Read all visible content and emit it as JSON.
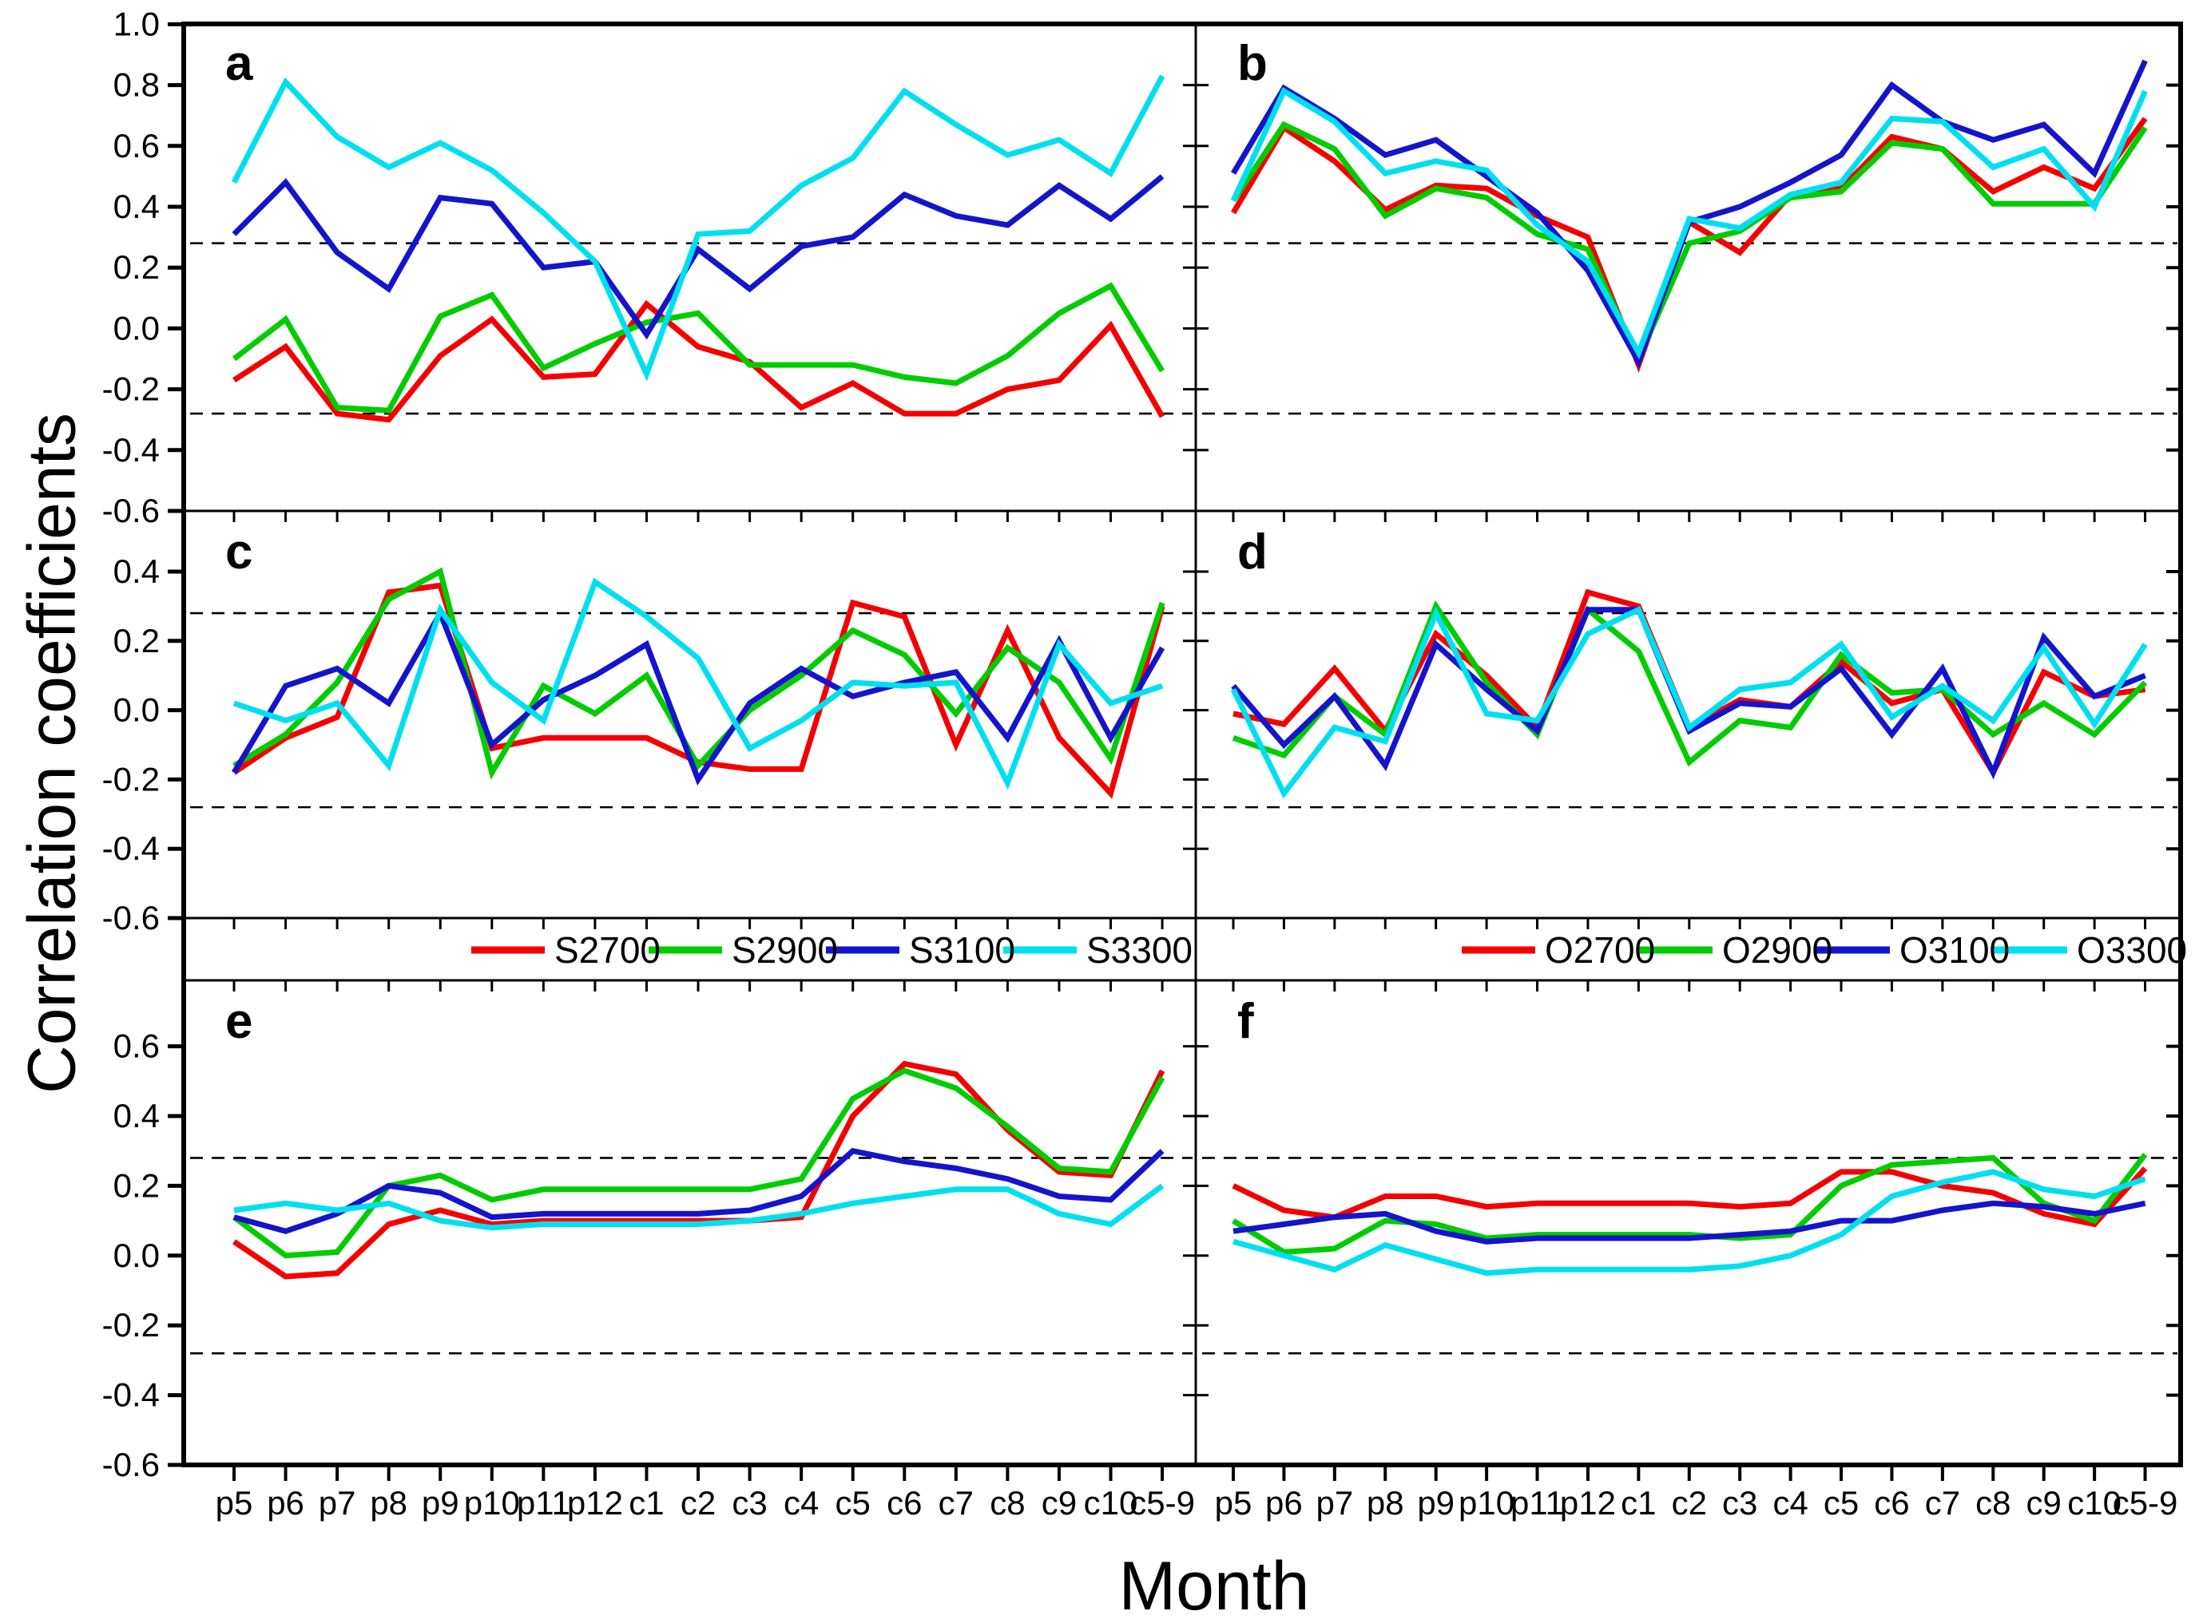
{
  "figure": {
    "y_axis_title": "Correlation coefficients",
    "x_axis_title": "Month",
    "significance_threshold": 0.28,
    "colors": {
      "red": "#F50000",
      "green": "#00CC00",
      "blue": "#1414CD",
      "cyan": "#00DFF0",
      "axis": "#000000"
    },
    "categories": [
      "p5",
      "p6",
      "p7",
      "p8",
      "p9",
      "p10",
      "p11",
      "p12",
      "c1",
      "c2",
      "c3",
      "c4",
      "c5",
      "c6",
      "c7",
      "c8",
      "c9",
      "c10",
      "c5-9"
    ],
    "legends": [
      {
        "panel_row": "middle",
        "side": "left",
        "items": [
          {
            "label": "S2700",
            "color_key": "red"
          },
          {
            "label": "S2900",
            "color_key": "green"
          },
          {
            "label": "S3100",
            "color_key": "blue"
          },
          {
            "label": "S3300",
            "color_key": "cyan"
          }
        ]
      },
      {
        "panel_row": "middle",
        "side": "right",
        "items": [
          {
            "label": "O2700",
            "color_key": "red"
          },
          {
            "label": "O2900",
            "color_key": "green"
          },
          {
            "label": "O3100",
            "color_key": "blue"
          },
          {
            "label": "O3300",
            "color_key": "cyan"
          }
        ]
      }
    ]
  },
  "chart_data": [
    {
      "type": "line",
      "panel": "a",
      "row": 0,
      "col": 0,
      "ylim": [
        -0.6,
        1.0
      ],
      "yticks": [
        1.0,
        0.8,
        0.6,
        0.4,
        0.2,
        0.0,
        -0.2,
        -0.4,
        -0.6
      ],
      "threshold_lines": [
        0.28,
        -0.28
      ],
      "series": [
        {
          "name": "S2700",
          "color_key": "red",
          "values": [
            -0.17,
            -0.06,
            -0.28,
            -0.3,
            -0.09,
            0.03,
            -0.16,
            -0.15,
            0.08,
            -0.06,
            -0.11,
            -0.26,
            -0.18,
            -0.28,
            -0.28,
            -0.2,
            -0.17,
            0.01,
            -0.29
          ]
        },
        {
          "name": "S2900",
          "color_key": "green",
          "values": [
            -0.1,
            0.03,
            -0.26,
            -0.27,
            0.04,
            0.11,
            -0.13,
            -0.05,
            0.02,
            0.05,
            -0.12,
            -0.12,
            -0.12,
            -0.16,
            -0.18,
            -0.09,
            0.05,
            0.14,
            -0.14
          ]
        },
        {
          "name": "S3100",
          "color_key": "blue",
          "values": [
            0.31,
            0.48,
            0.25,
            0.13,
            0.43,
            0.41,
            0.2,
            0.22,
            -0.02,
            0.26,
            0.13,
            0.27,
            0.3,
            0.44,
            0.37,
            0.34,
            0.47,
            0.36,
            0.5
          ]
        },
        {
          "name": "S3300",
          "color_key": "cyan",
          "values": [
            0.48,
            0.81,
            0.63,
            0.53,
            0.61,
            0.52,
            0.38,
            0.22,
            -0.15,
            0.31,
            0.32,
            0.47,
            0.56,
            0.78,
            0.67,
            0.57,
            0.62,
            0.51,
            0.83
          ]
        }
      ]
    },
    {
      "type": "line",
      "panel": "b",
      "row": 0,
      "col": 1,
      "ylim": [
        -0.6,
        1.0
      ],
      "yticks": [
        0.8,
        0.6,
        0.4,
        0.2,
        0.0,
        -0.2,
        -0.4
      ],
      "threshold_lines": [
        0.28,
        -0.28
      ],
      "series": [
        {
          "name": "O2700",
          "color_key": "red",
          "values": [
            0.38,
            0.66,
            0.55,
            0.39,
            0.47,
            0.46,
            0.37,
            0.3,
            -0.12,
            0.35,
            0.25,
            0.44,
            0.46,
            0.63,
            0.59,
            0.45,
            0.53,
            0.46,
            0.69
          ]
        },
        {
          "name": "O2900",
          "color_key": "green",
          "values": [
            0.42,
            0.67,
            0.59,
            0.37,
            0.46,
            0.43,
            0.31,
            0.26,
            -0.1,
            0.28,
            0.32,
            0.43,
            0.45,
            0.61,
            0.59,
            0.41,
            0.41,
            0.41,
            0.66
          ]
        },
        {
          "name": "O3100",
          "color_key": "blue",
          "values": [
            0.51,
            0.79,
            0.69,
            0.57,
            0.62,
            0.5,
            0.38,
            0.19,
            -0.11,
            0.35,
            0.4,
            0.48,
            0.57,
            0.8,
            0.68,
            0.62,
            0.67,
            0.51,
            0.88
          ]
        },
        {
          "name": "O3300",
          "color_key": "cyan",
          "values": [
            0.42,
            0.78,
            0.68,
            0.51,
            0.55,
            0.52,
            0.34,
            0.22,
            -0.08,
            0.36,
            0.33,
            0.44,
            0.48,
            0.69,
            0.68,
            0.53,
            0.59,
            0.4,
            0.78
          ]
        }
      ]
    },
    {
      "type": "line",
      "panel": "c",
      "row": 1,
      "col": 0,
      "ylim": [
        -0.6,
        0.575
      ],
      "yticks": [
        0.4,
        0.2,
        0.0,
        -0.2,
        -0.4,
        -0.6
      ],
      "threshold_lines": [
        0.28,
        -0.28
      ],
      "series": [
        {
          "name": "S2700",
          "color_key": "red",
          "values": [
            -0.18,
            -0.08,
            -0.02,
            0.34,
            0.36,
            -0.11,
            -0.08,
            -0.08,
            -0.08,
            -0.15,
            -0.17,
            -0.17,
            0.31,
            0.27,
            -0.1,
            0.23,
            -0.08,
            -0.24,
            0.3
          ]
        },
        {
          "name": "S2900",
          "color_key": "green",
          "values": [
            -0.16,
            -0.07,
            0.08,
            0.32,
            0.4,
            -0.18,
            0.07,
            -0.01,
            0.1,
            -0.16,
            0.0,
            0.1,
            0.23,
            0.16,
            -0.01,
            0.18,
            0.08,
            -0.14,
            0.31
          ]
        },
        {
          "name": "S3100",
          "color_key": "blue",
          "values": [
            -0.18,
            0.07,
            0.12,
            0.02,
            0.28,
            -0.1,
            0.03,
            0.1,
            0.19,
            -0.2,
            0.02,
            0.12,
            0.04,
            0.08,
            0.11,
            -0.08,
            0.2,
            -0.08,
            0.18
          ]
        },
        {
          "name": "S3300",
          "color_key": "cyan",
          "values": [
            0.02,
            -0.03,
            0.02,
            -0.16,
            0.29,
            0.08,
            -0.03,
            0.37,
            0.27,
            0.15,
            -0.11,
            -0.03,
            0.08,
            0.07,
            0.08,
            -0.21,
            0.19,
            0.02,
            0.07
          ]
        }
      ]
    },
    {
      "type": "line",
      "panel": "d",
      "row": 1,
      "col": 1,
      "ylim": [
        -0.6,
        0.575
      ],
      "yticks": [
        0.4,
        0.2,
        0.0,
        -0.2,
        -0.4
      ],
      "threshold_lines": [
        0.28,
        -0.28
      ],
      "series": [
        {
          "name": "O2700",
          "color_key": "red",
          "values": [
            -0.01,
            -0.04,
            0.12,
            -0.06,
            0.22,
            0.1,
            -0.05,
            0.34,
            0.3,
            -0.05,
            0.03,
            0.01,
            0.14,
            0.02,
            0.06,
            -0.18,
            0.11,
            0.04,
            0.06
          ]
        },
        {
          "name": "O2900",
          "color_key": "green",
          "values": [
            -0.08,
            -0.13,
            0.04,
            -0.07,
            0.3,
            0.08,
            -0.07,
            0.29,
            0.17,
            -0.15,
            -0.03,
            -0.05,
            0.16,
            0.05,
            0.06,
            -0.07,
            0.02,
            -0.07,
            0.08
          ]
        },
        {
          "name": "O3100",
          "color_key": "blue",
          "values": [
            0.07,
            -0.1,
            0.04,
            -0.16,
            0.19,
            0.06,
            -0.06,
            0.29,
            0.29,
            -0.06,
            0.02,
            0.01,
            0.12,
            -0.07,
            0.12,
            -0.18,
            0.21,
            0.04,
            0.1
          ]
        },
        {
          "name": "O3300",
          "color_key": "cyan",
          "values": [
            0.06,
            -0.24,
            -0.05,
            -0.09,
            0.28,
            -0.01,
            -0.03,
            0.22,
            0.29,
            -0.05,
            0.06,
            0.08,
            0.19,
            -0.02,
            0.07,
            -0.03,
            0.18,
            -0.04,
            0.19
          ]
        }
      ]
    },
    {
      "type": "line",
      "panel": "e",
      "row": 2,
      "col": 0,
      "ylim": [
        -0.6,
        0.79
      ],
      "yticks": [
        0.6,
        0.4,
        0.2,
        0.0,
        -0.2,
        -0.4,
        -0.6
      ],
      "threshold_lines": [
        0.28,
        -0.28
      ],
      "series": [
        {
          "name": "S2700",
          "color_key": "red",
          "values": [
            0.04,
            -0.06,
            -0.05,
            0.09,
            0.13,
            0.09,
            0.1,
            0.1,
            0.1,
            0.1,
            0.1,
            0.11,
            0.4,
            0.55,
            0.52,
            0.36,
            0.24,
            0.23,
            0.53
          ]
        },
        {
          "name": "S2900",
          "color_key": "green",
          "values": [
            0.11,
            0.0,
            0.01,
            0.2,
            0.23,
            0.16,
            0.19,
            0.19,
            0.19,
            0.19,
            0.19,
            0.22,
            0.45,
            0.53,
            0.48,
            0.37,
            0.25,
            0.24,
            0.51
          ]
        },
        {
          "name": "S3100",
          "color_key": "blue",
          "values": [
            0.11,
            0.07,
            0.12,
            0.2,
            0.18,
            0.11,
            0.12,
            0.12,
            0.12,
            0.12,
            0.13,
            0.17,
            0.3,
            0.27,
            0.25,
            0.22,
            0.17,
            0.16,
            0.3
          ]
        },
        {
          "name": "S3300",
          "color_key": "cyan",
          "values": [
            0.13,
            0.15,
            0.13,
            0.15,
            0.1,
            0.08,
            0.09,
            0.09,
            0.09,
            0.09,
            0.1,
            0.12,
            0.15,
            0.17,
            0.19,
            0.19,
            0.12,
            0.09,
            0.2
          ]
        }
      ]
    },
    {
      "type": "line",
      "panel": "f",
      "row": 2,
      "col": 1,
      "ylim": [
        -0.6,
        0.79
      ],
      "yticks": [
        0.6,
        0.4,
        0.2,
        0.0,
        -0.2,
        -0.4
      ],
      "threshold_lines": [
        0.28,
        -0.28
      ],
      "series": [
        {
          "name": "O2700",
          "color_key": "red",
          "values": [
            0.2,
            0.13,
            0.11,
            0.17,
            0.17,
            0.14,
            0.15,
            0.15,
            0.15,
            0.15,
            0.14,
            0.15,
            0.24,
            0.24,
            0.2,
            0.18,
            0.12,
            0.09,
            0.25
          ]
        },
        {
          "name": "O2900",
          "color_key": "green",
          "values": [
            0.1,
            0.01,
            0.02,
            0.1,
            0.09,
            0.05,
            0.06,
            0.06,
            0.06,
            0.06,
            0.05,
            0.06,
            0.2,
            0.26,
            0.27,
            0.28,
            0.15,
            0.1,
            0.29
          ]
        },
        {
          "name": "O3100",
          "color_key": "blue",
          "values": [
            0.07,
            0.09,
            0.11,
            0.12,
            0.07,
            0.04,
            0.05,
            0.05,
            0.05,
            0.05,
            0.06,
            0.07,
            0.1,
            0.1,
            0.13,
            0.15,
            0.14,
            0.12,
            0.15
          ]
        },
        {
          "name": "O3300",
          "color_key": "cyan",
          "values": [
            0.04,
            0.0,
            -0.04,
            0.03,
            -0.01,
            -0.05,
            -0.04,
            -0.04,
            -0.04,
            -0.04,
            -0.03,
            0.0,
            0.06,
            0.17,
            0.21,
            0.24,
            0.19,
            0.17,
            0.22
          ]
        }
      ]
    }
  ]
}
